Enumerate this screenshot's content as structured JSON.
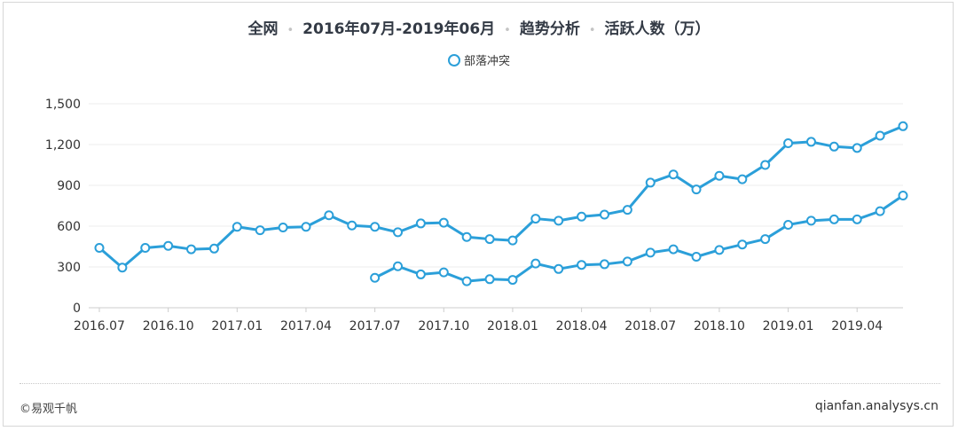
{
  "title": {
    "parts": [
      "全网",
      "2016年07月-2019年06月",
      "趋势分析",
      "活跃人数（万）"
    ],
    "separator": "•"
  },
  "legend": {
    "label": "部落冲突"
  },
  "footer": {
    "left": "©易观千帆",
    "right": "qianfan.analysys.cn"
  },
  "colors": {
    "series": "#2b9fd9",
    "axis": "#cccccc",
    "grid": "#eeeeee",
    "text": "#333333"
  },
  "chart_data": {
    "type": "line",
    "ylim": [
      0,
      1500
    ],
    "yticks": [
      0,
      300,
      600,
      900,
      1200,
      1500
    ],
    "ytick_labels": [
      "0",
      "300",
      "600",
      "900",
      "1,200",
      "1,500"
    ],
    "x": [
      "2016.07",
      "2016.08",
      "2016.09",
      "2016.10",
      "2016.11",
      "2016.12",
      "2017.01",
      "2017.02",
      "2017.03",
      "2017.04",
      "2017.05",
      "2017.06",
      "2017.07",
      "2017.08",
      "2017.09",
      "2017.10",
      "2017.11",
      "2017.12",
      "2018.01",
      "2018.02",
      "2018.03",
      "2018.04",
      "2018.05",
      "2018.06",
      "2018.07",
      "2018.08",
      "2018.09",
      "2018.10",
      "2018.11",
      "2018.12",
      "2019.01",
      "2019.02",
      "2019.03",
      "2019.04",
      "2019.05",
      "2019.06"
    ],
    "xtick_labels": [
      "2016.07",
      "2016.10",
      "2017.01",
      "2017.04",
      "2017.07",
      "2017.10",
      "2018.01",
      "2018.04",
      "2018.07",
      "2018.10",
      "2019.01",
      "2019.04"
    ],
    "series": [
      {
        "name": "部落冲突",
        "values": [
          440,
          295,
          440,
          455,
          430,
          435,
          595,
          570,
          590,
          595,
          680,
          605,
          595,
          555,
          620,
          625,
          520,
          505,
          495,
          655,
          640,
          670,
          685,
          720,
          920,
          980,
          870,
          970,
          945,
          1050,
          1210,
          1220,
          1185,
          1175,
          1265,
          1335
        ]
      },
      {
        "name": "",
        "values": [
          null,
          null,
          null,
          null,
          null,
          null,
          null,
          null,
          null,
          null,
          null,
          null,
          220,
          305,
          245,
          260,
          195,
          210,
          205,
          325,
          285,
          315,
          320,
          340,
          405,
          430,
          375,
          425,
          465,
          505,
          610,
          640,
          650,
          650,
          710,
          825
        ]
      }
    ]
  }
}
